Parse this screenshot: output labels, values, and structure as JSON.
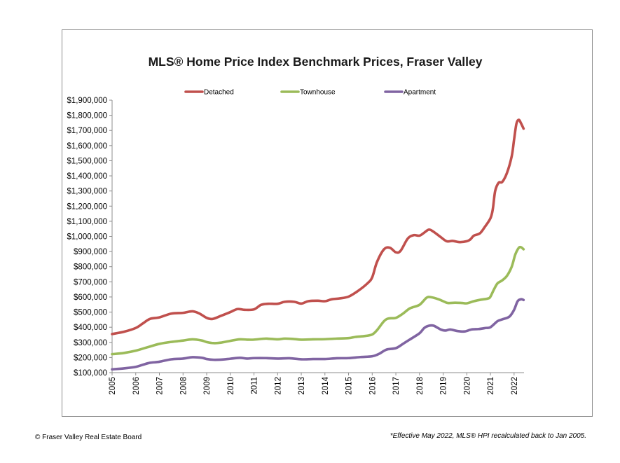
{
  "chart_data": {
    "type": "line",
    "title": "MLS® Home Price Index Benchmark Prices, Fraser Valley",
    "xlabel": "",
    "ylabel": "",
    "ylim": [
      100000,
      1900000
    ],
    "xlim": [
      2005.0,
      2022.42
    ],
    "grid": false,
    "legend_position": "top",
    "y_ticks": [
      {
        "value": 100000,
        "label": "$100,000"
      },
      {
        "value": 200000,
        "label": "$200,000"
      },
      {
        "value": 300000,
        "label": "$300,000"
      },
      {
        "value": 400000,
        "label": "$400,000"
      },
      {
        "value": 500000,
        "label": "$500,000"
      },
      {
        "value": 600000,
        "label": "$600,000"
      },
      {
        "value": 700000,
        "label": "$700,000"
      },
      {
        "value": 800000,
        "label": "$800,000"
      },
      {
        "value": 900000,
        "label": "$900,000"
      },
      {
        "value": 1000000,
        "label": "$1,000,000"
      },
      {
        "value": 1100000,
        "label": "$1,100,000"
      },
      {
        "value": 1200000,
        "label": "$1,200,000"
      },
      {
        "value": 1300000,
        "label": "$1,300,000"
      },
      {
        "value": 1400000,
        "label": "$1,400,000"
      },
      {
        "value": 1500000,
        "label": "$1,500,000"
      },
      {
        "value": 1600000,
        "label": "$1,600,000"
      },
      {
        "value": 1700000,
        "label": "$1,700,000"
      },
      {
        "value": 1800000,
        "label": "$1,800,000"
      },
      {
        "value": 1900000,
        "label": "$1,900,000"
      }
    ],
    "x_ticks": [
      {
        "value": 2005,
        "label": "2005"
      },
      {
        "value": 2006,
        "label": "2006"
      },
      {
        "value": 2007,
        "label": "2007"
      },
      {
        "value": 2008,
        "label": "2008"
      },
      {
        "value": 2009,
        "label": "2009"
      },
      {
        "value": 2010,
        "label": "2010"
      },
      {
        "value": 2011,
        "label": "2011"
      },
      {
        "value": 2012,
        "label": "2012"
      },
      {
        "value": 2013,
        "label": "2013"
      },
      {
        "value": 2014,
        "label": "2014"
      },
      {
        "value": 2015,
        "label": "2015"
      },
      {
        "value": 2016,
        "label": "2016"
      },
      {
        "value": 2017,
        "label": "2017"
      },
      {
        "value": 2018,
        "label": "2018"
      },
      {
        "value": 2019,
        "label": "2019"
      },
      {
        "value": 2020,
        "label": "2020"
      },
      {
        "value": 2021,
        "label": "2021"
      },
      {
        "value": 2022,
        "label": "2022"
      }
    ],
    "series": [
      {
        "name": "Detached",
        "color": "#c0504d",
        "points": [
          [
            2005.0,
            355000
          ],
          [
            2005.5,
            370000
          ],
          [
            2006.0,
            395000
          ],
          [
            2006.3,
            425000
          ],
          [
            2006.6,
            455000
          ],
          [
            2007.0,
            465000
          ],
          [
            2007.5,
            490000
          ],
          [
            2008.0,
            495000
          ],
          [
            2008.4,
            505000
          ],
          [
            2008.7,
            490000
          ],
          [
            2009.0,
            462000
          ],
          [
            2009.25,
            455000
          ],
          [
            2009.6,
            475000
          ],
          [
            2010.0,
            500000
          ],
          [
            2010.3,
            520000
          ],
          [
            2010.6,
            515000
          ],
          [
            2011.0,
            518000
          ],
          [
            2011.3,
            548000
          ],
          [
            2011.6,
            555000
          ],
          [
            2012.0,
            555000
          ],
          [
            2012.3,
            568000
          ],
          [
            2012.7,
            568000
          ],
          [
            2013.0,
            556000
          ],
          [
            2013.3,
            572000
          ],
          [
            2013.7,
            575000
          ],
          [
            2014.0,
            572000
          ],
          [
            2014.3,
            585000
          ],
          [
            2014.6,
            590000
          ],
          [
            2015.0,
            602000
          ],
          [
            2015.4,
            640000
          ],
          [
            2015.8,
            690000
          ],
          [
            2016.0,
            730000
          ],
          [
            2016.2,
            830000
          ],
          [
            2016.5,
            915000
          ],
          [
            2016.75,
            925000
          ],
          [
            2017.0,
            895000
          ],
          [
            2017.2,
            905000
          ],
          [
            2017.5,
            985000
          ],
          [
            2017.75,
            1008000
          ],
          [
            2018.0,
            1005000
          ],
          [
            2018.2,
            1025000
          ],
          [
            2018.4,
            1045000
          ],
          [
            2018.6,
            1030000
          ],
          [
            2018.9,
            995000
          ],
          [
            2019.15,
            968000
          ],
          [
            2019.4,
            970000
          ],
          [
            2019.7,
            962000
          ],
          [
            2020.0,
            968000
          ],
          [
            2020.15,
            980000
          ],
          [
            2020.3,
            1005000
          ],
          [
            2020.55,
            1020000
          ],
          [
            2020.75,
            1060000
          ],
          [
            2021.0,
            1120000
          ],
          [
            2021.1,
            1180000
          ],
          [
            2021.2,
            1300000
          ],
          [
            2021.35,
            1355000
          ],
          [
            2021.5,
            1360000
          ],
          [
            2021.7,
            1420000
          ],
          [
            2021.9,
            1530000
          ],
          [
            2022.0,
            1640000
          ],
          [
            2022.1,
            1745000
          ],
          [
            2022.2,
            1770000
          ],
          [
            2022.3,
            1745000
          ],
          [
            2022.4,
            1712000
          ]
        ]
      },
      {
        "name": "Townhouse",
        "color": "#9bbb59",
        "points": [
          [
            2005.0,
            222000
          ],
          [
            2005.5,
            230000
          ],
          [
            2006.0,
            245000
          ],
          [
            2006.5,
            268000
          ],
          [
            2007.0,
            290000
          ],
          [
            2007.5,
            303000
          ],
          [
            2008.0,
            312000
          ],
          [
            2008.4,
            320000
          ],
          [
            2008.8,
            312000
          ],
          [
            2009.0,
            302000
          ],
          [
            2009.3,
            295000
          ],
          [
            2009.6,
            298000
          ],
          [
            2010.0,
            310000
          ],
          [
            2010.4,
            320000
          ],
          [
            2010.7,
            318000
          ],
          [
            2011.0,
            318000
          ],
          [
            2011.5,
            325000
          ],
          [
            2012.0,
            320000
          ],
          [
            2012.3,
            325000
          ],
          [
            2012.7,
            322000
          ],
          [
            2013.0,
            318000
          ],
          [
            2013.5,
            320000
          ],
          [
            2014.0,
            321000
          ],
          [
            2014.5,
            325000
          ],
          [
            2015.0,
            328000
          ],
          [
            2015.3,
            336000
          ],
          [
            2015.7,
            342000
          ],
          [
            2016.0,
            352000
          ],
          [
            2016.2,
            380000
          ],
          [
            2016.5,
            440000
          ],
          [
            2016.7,
            458000
          ],
          [
            2017.0,
            462000
          ],
          [
            2017.3,
            490000
          ],
          [
            2017.6,
            525000
          ],
          [
            2018.0,
            548000
          ],
          [
            2018.3,
            595000
          ],
          [
            2018.5,
            598000
          ],
          [
            2018.8,
            585000
          ],
          [
            2019.0,
            572000
          ],
          [
            2019.2,
            560000
          ],
          [
            2019.5,
            562000
          ],
          [
            2019.8,
            560000
          ],
          [
            2020.0,
            558000
          ],
          [
            2020.3,
            572000
          ],
          [
            2020.6,
            582000
          ],
          [
            2020.9,
            590000
          ],
          [
            2021.0,
            602000
          ],
          [
            2021.15,
            650000
          ],
          [
            2021.3,
            690000
          ],
          [
            2021.5,
            710000
          ],
          [
            2021.7,
            740000
          ],
          [
            2021.9,
            800000
          ],
          [
            2022.05,
            880000
          ],
          [
            2022.2,
            925000
          ],
          [
            2022.3,
            928000
          ],
          [
            2022.4,
            915000
          ]
        ]
      },
      {
        "name": "Apartment",
        "color": "#8064a2",
        "points": [
          [
            2005.0,
            122000
          ],
          [
            2005.5,
            128000
          ],
          [
            2006.0,
            138000
          ],
          [
            2006.3,
            152000
          ],
          [
            2006.6,
            165000
          ],
          [
            2007.0,
            172000
          ],
          [
            2007.5,
            188000
          ],
          [
            2008.0,
            193000
          ],
          [
            2008.4,
            202000
          ],
          [
            2008.8,
            198000
          ],
          [
            2009.0,
            190000
          ],
          [
            2009.3,
            185000
          ],
          [
            2009.7,
            187000
          ],
          [
            2010.0,
            192000
          ],
          [
            2010.4,
            198000
          ],
          [
            2010.7,
            193000
          ],
          [
            2011.0,
            196000
          ],
          [
            2011.5,
            196000
          ],
          [
            2012.0,
            193000
          ],
          [
            2012.5,
            195000
          ],
          [
            2013.0,
            188000
          ],
          [
            2013.5,
            190000
          ],
          [
            2014.0,
            190000
          ],
          [
            2014.5,
            195000
          ],
          [
            2015.0,
            196000
          ],
          [
            2015.5,
            203000
          ],
          [
            2016.0,
            208000
          ],
          [
            2016.3,
            225000
          ],
          [
            2016.6,
            252000
          ],
          [
            2017.0,
            262000
          ],
          [
            2017.3,
            290000
          ],
          [
            2017.6,
            320000
          ],
          [
            2018.0,
            360000
          ],
          [
            2018.2,
            395000
          ],
          [
            2018.4,
            410000
          ],
          [
            2018.6,
            410000
          ],
          [
            2018.9,
            385000
          ],
          [
            2019.1,
            378000
          ],
          [
            2019.3,
            385000
          ],
          [
            2019.6,
            375000
          ],
          [
            2019.9,
            372000
          ],
          [
            2020.2,
            385000
          ],
          [
            2020.5,
            388000
          ],
          [
            2020.8,
            395000
          ],
          [
            2021.0,
            400000
          ],
          [
            2021.3,
            440000
          ],
          [
            2021.5,
            452000
          ],
          [
            2021.8,
            470000
          ],
          [
            2022.0,
            515000
          ],
          [
            2022.15,
            572000
          ],
          [
            2022.3,
            585000
          ],
          [
            2022.4,
            580000
          ]
        ]
      }
    ]
  },
  "footer": {
    "copyright": "© Fraser Valley Real Estate Board",
    "note": "*Effective May 2022, MLS® HPI recalculated back to Jan 2005."
  }
}
